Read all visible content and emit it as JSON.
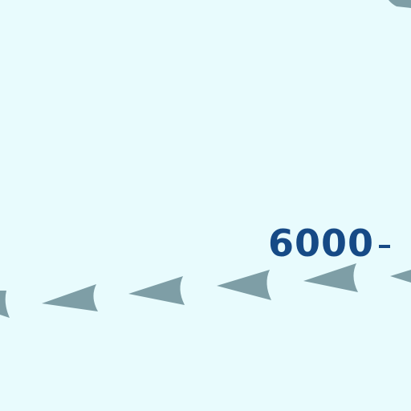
{
  "map": {
    "depth_contour": {
      "label": "6000",
      "color": "#164a86"
    },
    "route": {
      "direction": "west",
      "arrow_count": 7,
      "arrow_color": "#7e9ea6"
    },
    "background_color": "#e8fbfd"
  }
}
